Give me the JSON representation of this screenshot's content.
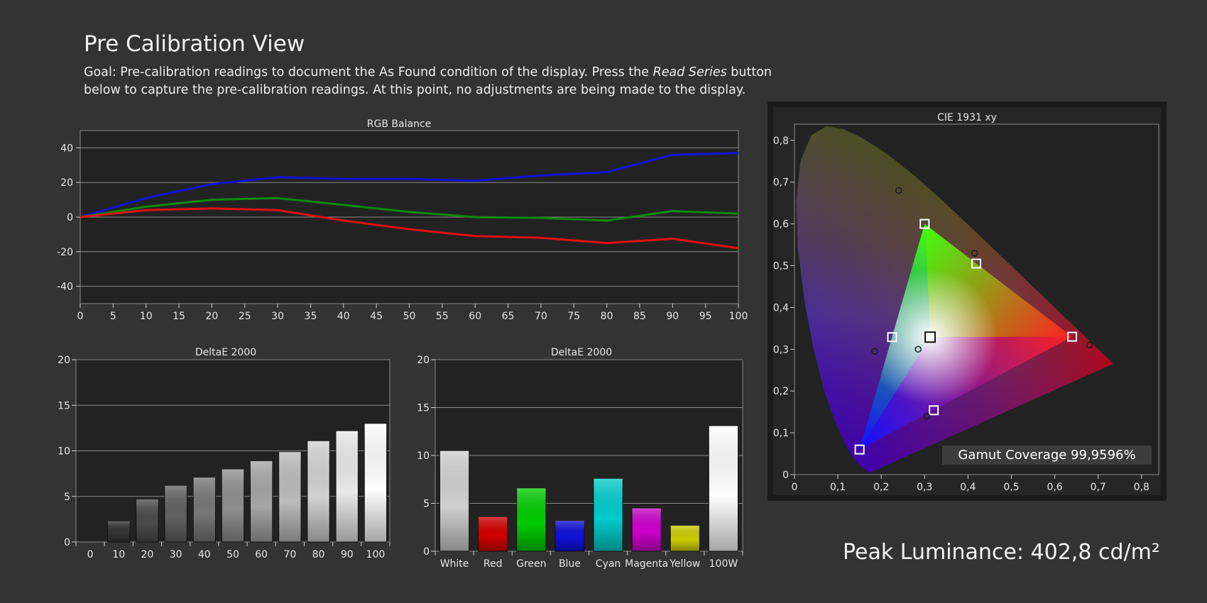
{
  "header": {
    "title": "Pre Calibration View",
    "goal_prefix": "Goal: Pre-calibration readings to document the As Found condition of the display. Press the ",
    "goal_button_name": "Read Series",
    "goal_suffix": " button below to capture the pre-calibration readings. At this point, no adjustments are being made to the display."
  },
  "colors": {
    "background": "#333333",
    "plot_background": "#222222",
    "red": "#e01010",
    "green": "#0a8a0a",
    "blue": "#1010d8"
  },
  "gamut": {
    "label": "Gamut Coverage 99,9596%"
  },
  "peak_luminance": {
    "label": "Peak Luminance: 402,8 cd/m²"
  },
  "chart_data": [
    {
      "id": "rgb",
      "type": "line",
      "title": "RGB Balance",
      "x": [
        0,
        10,
        20,
        30,
        40,
        50,
        60,
        70,
        80,
        90,
        100
      ],
      "x_ticks": [
        0,
        5,
        10,
        15,
        20,
        25,
        30,
        35,
        40,
        45,
        50,
        55,
        60,
        65,
        70,
        75,
        80,
        85,
        90,
        95,
        100
      ],
      "y_ticks": [
        40,
        20,
        0,
        -20,
        -40
      ],
      "xlim": [
        0,
        100
      ],
      "ylim": [
        -50,
        50
      ],
      "grid": true,
      "series": [
        {
          "color": "#1010d8",
          "values": [
            0,
            11,
            19,
            23,
            22,
            22,
            21,
            24,
            26,
            36,
            37
          ]
        },
        {
          "color": "#0a8a0a",
          "values": [
            0,
            6,
            10,
            11,
            7,
            3,
            0,
            -0.5,
            -2,
            3.5,
            2
          ]
        },
        {
          "color": "#e01010",
          "values": [
            0,
            4,
            5,
            4,
            -2,
            -7,
            -11,
            -12,
            -15,
            -12.5,
            -18
          ]
        }
      ]
    },
    {
      "id": "greyscale",
      "type": "bar",
      "title": "DeltaE 2000",
      "categories": [
        "0",
        "10",
        "20",
        "30",
        "40",
        "50",
        "60",
        "70",
        "80",
        "90",
        "100"
      ],
      "values": [
        0,
        2.3,
        4.7,
        6.2,
        7.1,
        8.0,
        8.9,
        9.9,
        11.1,
        12.2,
        13.0
      ],
      "y_ticks": [
        20,
        15,
        10,
        5,
        0
      ],
      "ylim": [
        0,
        20
      ],
      "grid": true
    },
    {
      "id": "colors",
      "type": "bar",
      "title": "DeltaE 2000",
      "categories": [
        "White",
        "Red",
        "Green",
        "Blue",
        "Cyan",
        "Magenta",
        "Yellow",
        "100W"
      ],
      "values": [
        10.5,
        3.6,
        6.6,
        3.2,
        7.6,
        4.5,
        2.7,
        13.1
      ],
      "bar_colors": [
        "#d0d0d0",
        "#d10000",
        "#00cc00",
        "#1010d8",
        "#00cccc",
        "#cc00cc",
        "#cccc00",
        "#ffffff"
      ],
      "y_ticks": [
        20,
        15,
        10,
        5,
        0
      ],
      "ylim": [
        0,
        20
      ],
      "grid": true
    },
    {
      "id": "cie",
      "type": "scatter",
      "title": "CIE 1931 xy",
      "xlim": [
        0,
        0.85
      ],
      "ylim": [
        0,
        0.85
      ],
      "x_ticks": [
        "0",
        "0,1",
        "0,2",
        "0,3",
        "0,4",
        "0,5",
        "0,6",
        "0,7",
        "0,8"
      ],
      "y_ticks": [
        "0,8",
        "0,7",
        "0,6",
        "0,5",
        "0,4",
        "0,3",
        "0,2",
        "0,1",
        "0"
      ],
      "targets": [
        {
          "x": 0.64,
          "y": 0.33
        },
        {
          "x": 0.3,
          "y": 0.6
        },
        {
          "x": 0.15,
          "y": 0.06
        },
        {
          "x": 0.225,
          "y": 0.329
        },
        {
          "x": 0.321,
          "y": 0.154
        },
        {
          "x": 0.419,
          "y": 0.505
        },
        {
          "x": 0.3127,
          "y": 0.329
        }
      ],
      "measured": [
        {
          "x": 0.68,
          "y": 0.31
        },
        {
          "x": 0.24,
          "y": 0.68
        },
        {
          "x": 0.185,
          "y": 0.295
        },
        {
          "x": 0.305,
          "y": 0.14
        },
        {
          "x": 0.415,
          "y": 0.53
        },
        {
          "x": 0.285,
          "y": 0.3
        }
      ]
    }
  ]
}
